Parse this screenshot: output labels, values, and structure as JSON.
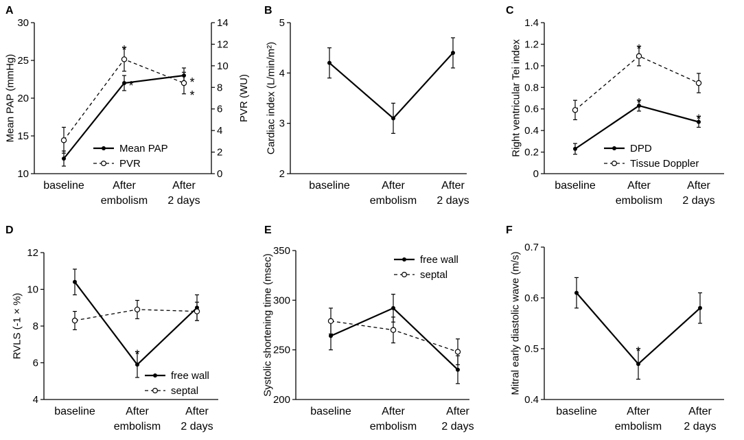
{
  "chart_data": [
    {
      "panel": "A",
      "type": "line",
      "categories": [
        "baseline",
        "After\nembolism",
        "After\n2 days"
      ],
      "ylabel": "Mean PAP (mmHg)",
      "ylim": [
        10,
        30
      ],
      "yticks": [
        10,
        15,
        20,
        25,
        30
      ],
      "y2label": "PVR (WU)",
      "y2lim": [
        0,
        14
      ],
      "y2ticks": [
        0,
        2,
        4,
        6,
        8,
        10,
        12,
        14
      ],
      "series": [
        {
          "name": "Mean PAP",
          "style": "solid",
          "axis": "left",
          "values": [
            12,
            22,
            23
          ],
          "errors": [
            1,
            1,
            1
          ]
        },
        {
          "name": "PVR",
          "style": "dashed",
          "axis": "right",
          "values": [
            3.1,
            10.6,
            8.4
          ],
          "errors": [
            1.2,
            1.1,
            1.0
          ]
        }
      ],
      "stars": [
        {
          "series": 0,
          "index": 1,
          "label": "*"
        },
        {
          "series": 0,
          "index": 2,
          "label": "*"
        },
        {
          "series": 1,
          "index": 1,
          "label": "*"
        },
        {
          "series": 1,
          "index": 2,
          "label": "*"
        }
      ],
      "legend": "bottom-right"
    },
    {
      "panel": "B",
      "type": "line",
      "categories": [
        "baseline",
        "After\nembolism",
        "After\n2 days"
      ],
      "ylabel": "Cardiac index (L/min/m²)",
      "ylim": [
        2,
        5
      ],
      "yticks": [
        2,
        3,
        4,
        5
      ],
      "series": [
        {
          "name": "",
          "style": "solid",
          "values": [
            4.2,
            3.1,
            4.4
          ],
          "errors": [
            0.3,
            0.3,
            0.3
          ]
        }
      ],
      "stars": []
    },
    {
      "panel": "C",
      "type": "line",
      "categories": [
        "baseline",
        "After\nembolism",
        "After\n2 days"
      ],
      "ylabel": "Right ventricular Tei index",
      "ylim": [
        0,
        1.4
      ],
      "yticks": [
        0,
        0.2,
        0.4,
        0.6,
        0.8,
        1.0,
        1.2,
        1.4
      ],
      "ytick_labels": [
        "0",
        "0.2",
        "0.4",
        "0.6",
        "0.8",
        "1.0",
        "1.2",
        "1.4"
      ],
      "series": [
        {
          "name": "DPD",
          "style": "solid",
          "values": [
            0.23,
            0.63,
            0.48
          ],
          "errors": [
            0.05,
            0.05,
            0.05
          ]
        },
        {
          "name": "Tissue Doppler",
          "style": "dashed",
          "values": [
            0.59,
            1.09,
            0.84
          ],
          "errors": [
            0.09,
            0.09,
            0.09
          ]
        }
      ],
      "stars": [
        {
          "series": 0,
          "index": 1,
          "label": "*"
        },
        {
          "series": 0,
          "index": 2,
          "label": "*"
        },
        {
          "series": 1,
          "index": 1,
          "label": "*"
        }
      ],
      "legend": "bottom-right"
    },
    {
      "panel": "D",
      "type": "line",
      "categories": [
        "baseline",
        "After\nembolism",
        "After\n2 days"
      ],
      "ylabel": "RVLS (-1 × %)",
      "ylim": [
        4,
        12
      ],
      "yticks": [
        4,
        6,
        8,
        10,
        12
      ],
      "series": [
        {
          "name": "free wall",
          "style": "solid",
          "values": [
            10.4,
            5.9,
            9.0
          ],
          "errors": [
            0.7,
            0.7,
            0.7
          ]
        },
        {
          "name": "septal",
          "style": "dashed",
          "values": [
            8.3,
            8.9,
            8.8
          ],
          "errors": [
            0.5,
            0.5,
            0.5
          ]
        }
      ],
      "stars": [
        {
          "series": 0,
          "index": 1,
          "label": "*"
        }
      ],
      "legend": "bottom-right"
    },
    {
      "panel": "E",
      "type": "line",
      "categories": [
        "baseline",
        "After\nembolism",
        "After\n2 days"
      ],
      "ylabel": "Systolic shortening time (msec)",
      "ylim": [
        200,
        350
      ],
      "yticks": [
        200,
        250,
        300,
        350
      ],
      "series": [
        {
          "name": "free wall",
          "style": "solid",
          "values": [
            264,
            292,
            230
          ],
          "errors": [
            14,
            14,
            14
          ]
        },
        {
          "name": "septal",
          "style": "dashed",
          "values": [
            279,
            270,
            248
          ],
          "errors": [
            13,
            13,
            13
          ]
        }
      ],
      "stars": [],
      "legend": "top-right"
    },
    {
      "panel": "F",
      "type": "line",
      "categories": [
        "baseline",
        "After\nembolism",
        "After\n2 days"
      ],
      "ylabel": "Mitral early diastolic wave (m/s)",
      "ylim": [
        0.4,
        0.7
      ],
      "yticks": [
        0.4,
        0.5,
        0.6,
        0.7
      ],
      "ytick_labels": [
        "0.4",
        "0.5",
        "0.6",
        "0.7"
      ],
      "series": [
        {
          "name": "",
          "style": "solid",
          "values": [
            0.61,
            0.47,
            0.58
          ],
          "errors": [
            0.03,
            0.03,
            0.03
          ]
        }
      ],
      "stars": [
        {
          "series": 0,
          "index": 1,
          "label": "*"
        }
      ]
    }
  ]
}
